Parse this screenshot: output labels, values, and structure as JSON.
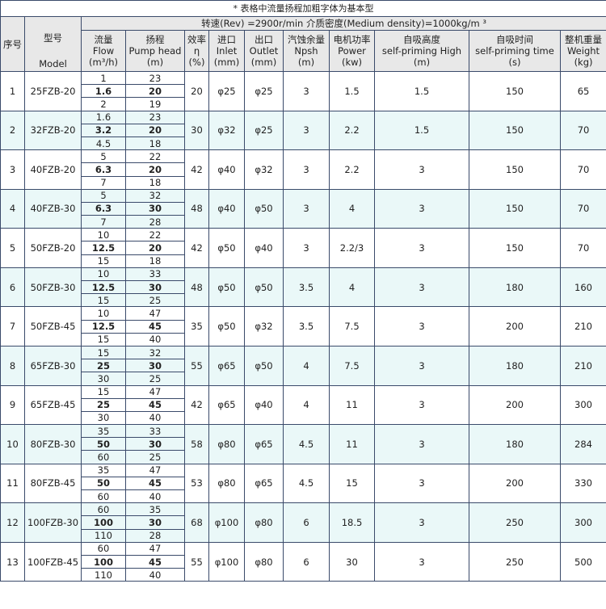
{
  "note": "* 表格中流量扬程加粗字体为基本型",
  "condition": "转速(Rev) =2900r/min   介质密度(Medium density)=1000kg/m ³",
  "headers": {
    "no": "序号",
    "model_cn": "型号",
    "model_en": "Model",
    "flow": [
      "流量",
      "Flow",
      "(m³/h)"
    ],
    "head": [
      "扬程",
      "Pump head",
      "(m)"
    ],
    "eff": [
      "效率",
      "η",
      "(%)"
    ],
    "inlet": [
      "进口",
      "Inlet",
      "(mm)"
    ],
    "outlet": [
      "出口",
      "Outlet",
      "(mm)"
    ],
    "npsh": [
      "汽蚀余量",
      "Npsh",
      "(m)"
    ],
    "power": [
      "电机功率",
      "Power",
      "(kw)"
    ],
    "sp_high": [
      "自吸高度",
      "self-priming High",
      "(m)"
    ],
    "sp_time": [
      "自吸时间",
      "self-priming time",
      "(s)"
    ],
    "weight": [
      "整机重量",
      "Weight",
      "(kg)"
    ]
  },
  "rows": [
    {
      "no": "1",
      "model": "25FZB-20",
      "flow": [
        "1",
        "1.6",
        "2"
      ],
      "head": [
        "23",
        "20",
        "19"
      ],
      "eff": "20",
      "inlet": "φ25",
      "outlet": "φ25",
      "npsh": "3",
      "power": "1.5",
      "sp_high": "1.5",
      "sp_time": "150",
      "weight": "65"
    },
    {
      "no": "2",
      "model": "32FZB-20",
      "flow": [
        "1.6",
        "3.2",
        "4.5"
      ],
      "head": [
        "23",
        "20",
        "18"
      ],
      "eff": "30",
      "inlet": "φ32",
      "outlet": "φ25",
      "npsh": "3",
      "power": "2.2",
      "sp_high": "1.5",
      "sp_time": "150",
      "weight": "70"
    },
    {
      "no": "3",
      "model": "40FZB-20",
      "flow": [
        "5",
        "6.3",
        "7"
      ],
      "head": [
        "22",
        "20",
        "18"
      ],
      "eff": "42",
      "inlet": "φ40",
      "outlet": "φ32",
      "npsh": "3",
      "power": "2.2",
      "sp_high": "3",
      "sp_time": "150",
      "weight": "70"
    },
    {
      "no": "4",
      "model": "40FZB-30",
      "flow": [
        "5",
        "6.3",
        "7"
      ],
      "head": [
        "32",
        "30",
        "28"
      ],
      "eff": "48",
      "inlet": "φ40",
      "outlet": "φ50",
      "npsh": "3",
      "power": "4",
      "sp_high": "3",
      "sp_time": "150",
      "weight": "70"
    },
    {
      "no": "5",
      "model": "50FZB-20",
      "flow": [
        "10",
        "12.5",
        "15"
      ],
      "head": [
        "22",
        "20",
        "18"
      ],
      "eff": "42",
      "inlet": "φ50",
      "outlet": "φ40",
      "npsh": "3",
      "power": "2.2/3",
      "sp_high": "3",
      "sp_time": "150",
      "weight": "70"
    },
    {
      "no": "6",
      "model": "50FZB-30",
      "flow": [
        "10",
        "12.5",
        "15"
      ],
      "head": [
        "33",
        "30",
        "25"
      ],
      "eff": "48",
      "inlet": "φ50",
      "outlet": "φ50",
      "npsh": "3.5",
      "power": "4",
      "sp_high": "3",
      "sp_time": "180",
      "weight": "160"
    },
    {
      "no": "7",
      "model": "50FZB-45",
      "flow": [
        "10",
        "12.5",
        "15"
      ],
      "head": [
        "47",
        "45",
        "40"
      ],
      "eff": "35",
      "inlet": "φ50",
      "outlet": "φ32",
      "npsh": "3.5",
      "power": "7.5",
      "sp_high": "3",
      "sp_time": "200",
      "weight": "210"
    },
    {
      "no": "8",
      "model": "65FZB-30",
      "flow": [
        "15",
        "25",
        "30"
      ],
      "head": [
        "32",
        "30",
        "25"
      ],
      "eff": "55",
      "inlet": "φ65",
      "outlet": "φ50",
      "npsh": "4",
      "power": "7.5",
      "sp_high": "3",
      "sp_time": "180",
      "weight": "210"
    },
    {
      "no": "9",
      "model": "65FZB-45",
      "flow": [
        "15",
        "25",
        "30"
      ],
      "head": [
        "47",
        "45",
        "40"
      ],
      "eff": "42",
      "inlet": "φ65",
      "outlet": "φ40",
      "npsh": "4",
      "power": "11",
      "sp_high": "3",
      "sp_time": "200",
      "weight": "300"
    },
    {
      "no": "10",
      "model": "80FZB-30",
      "flow": [
        "35",
        "50",
        "60"
      ],
      "head": [
        "33",
        "30",
        "25"
      ],
      "eff": "58",
      "inlet": "φ80",
      "outlet": "φ65",
      "npsh": "4.5",
      "power": "11",
      "sp_high": "3",
      "sp_time": "180",
      "weight": "284"
    },
    {
      "no": "11",
      "model": "80FZB-45",
      "flow": [
        "35",
        "50",
        "60"
      ],
      "head": [
        "47",
        "45",
        "40"
      ],
      "eff": "53",
      "inlet": "φ80",
      "outlet": "φ65",
      "npsh": "4.5",
      "power": "15",
      "sp_high": "3",
      "sp_time": "200",
      "weight": "330"
    },
    {
      "no": "12",
      "model": "100FZB-30",
      "flow": [
        "60",
        "100",
        "110"
      ],
      "head": [
        "35",
        "30",
        "28"
      ],
      "eff": "68",
      "inlet": "φ100",
      "outlet": "φ80",
      "npsh": "6",
      "power": "18.5",
      "sp_high": "3",
      "sp_time": "250",
      "weight": "300"
    },
    {
      "no": "13",
      "model": "100FZB-45",
      "flow": [
        "60",
        "100",
        "110"
      ],
      "head": [
        "47",
        "45",
        "40"
      ],
      "eff": "55",
      "inlet": "φ100",
      "outlet": "φ80",
      "npsh": "6",
      "power": "30",
      "sp_high": "3",
      "sp_time": "250",
      "weight": "500"
    }
  ]
}
